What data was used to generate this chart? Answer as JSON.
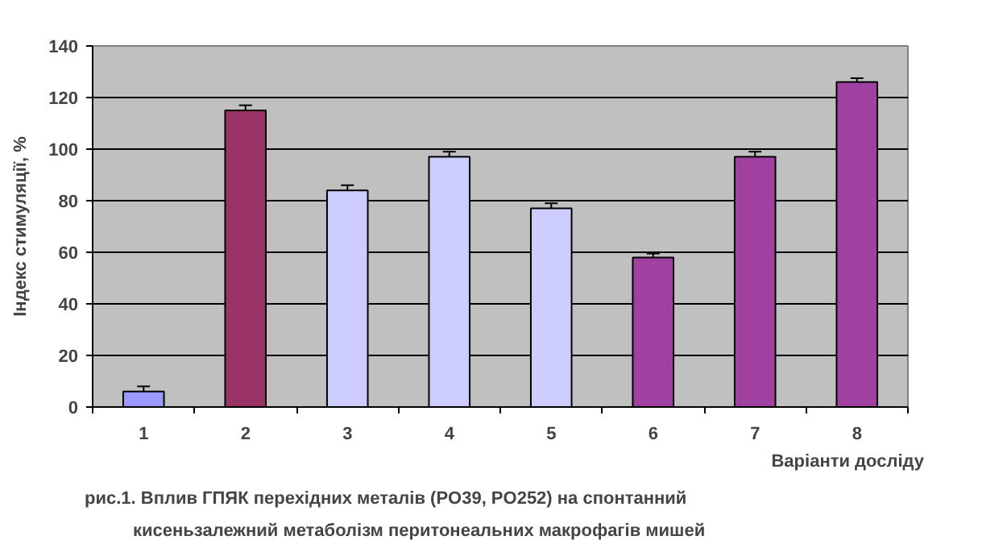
{
  "chart_data": {
    "type": "bar",
    "ylabel": "Індекс стимуляції, %",
    "xlabel": "Варіанти досліду",
    "categories": [
      "1",
      "2",
      "3",
      "4",
      "5",
      "6",
      "7",
      "8"
    ],
    "values": [
      6,
      115,
      84,
      97,
      77,
      58,
      97,
      126
    ],
    "errors": [
      2,
      2,
      2,
      2,
      2,
      1.5,
      2,
      1.5
    ],
    "colors": [
      "#9999ff",
      "#993366",
      "#ccccff",
      "#ccccff",
      "#ccccff",
      "#a040a0",
      "#a040a0",
      "#a040a0"
    ],
    "ylim": [
      0,
      140
    ],
    "yticks": [
      0,
      20,
      40,
      60,
      80,
      100,
      120,
      140
    ],
    "grid": "y",
    "annotations": [
      "рис.1. Вплив ГПЯК перехідних металів (PO39, PO252) на спонтанний",
      "кисеньзалежний метаболізм перитонеальних макрофагів мишей"
    ]
  }
}
